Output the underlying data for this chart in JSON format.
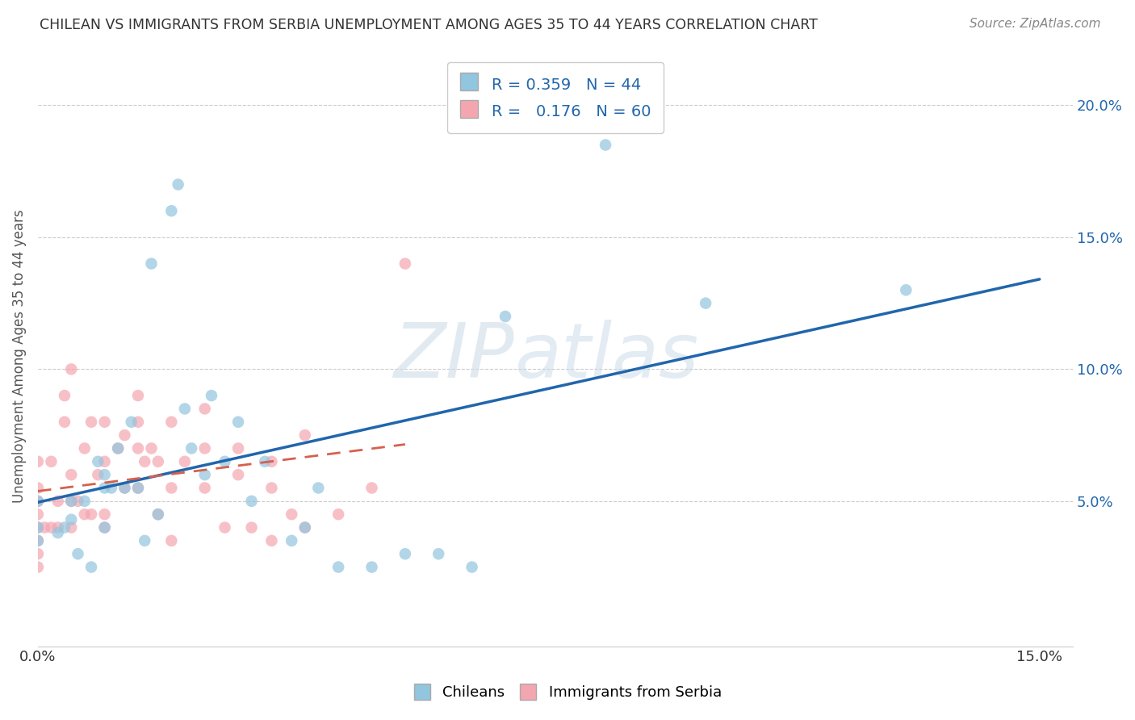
{
  "title": "CHILEAN VS IMMIGRANTS FROM SERBIA UNEMPLOYMENT AMONG AGES 35 TO 44 YEARS CORRELATION CHART",
  "source": "Source: ZipAtlas.com",
  "ylabel": "Unemployment Among Ages 35 to 44 years",
  "xlim": [
    0.0,
    0.155
  ],
  "ylim": [
    -0.005,
    0.215
  ],
  "chilean_color": "#92c5de",
  "chilean_color_line": "#2166ac",
  "serbia_color": "#f4a6b0",
  "serbia_color_line": "#d6604d",
  "R_chilean": 0.359,
  "N_chilean": 44,
  "R_serbia": 0.176,
  "N_serbia": 60,
  "chilean_x": [
    0.0,
    0.0,
    0.0,
    0.003,
    0.004,
    0.005,
    0.005,
    0.006,
    0.007,
    0.008,
    0.009,
    0.01,
    0.01,
    0.01,
    0.011,
    0.012,
    0.013,
    0.014,
    0.015,
    0.016,
    0.017,
    0.018,
    0.02,
    0.021,
    0.022,
    0.023,
    0.025,
    0.026,
    0.028,
    0.03,
    0.032,
    0.034,
    0.038,
    0.04,
    0.042,
    0.045,
    0.05,
    0.055,
    0.06,
    0.065,
    0.07,
    0.085,
    0.1,
    0.13
  ],
  "chilean_y": [
    0.035,
    0.04,
    0.05,
    0.038,
    0.04,
    0.043,
    0.05,
    0.03,
    0.05,
    0.025,
    0.065,
    0.06,
    0.04,
    0.055,
    0.055,
    0.07,
    0.055,
    0.08,
    0.055,
    0.035,
    0.14,
    0.045,
    0.16,
    0.17,
    0.085,
    0.07,
    0.06,
    0.09,
    0.065,
    0.08,
    0.05,
    0.065,
    0.035,
    0.04,
    0.055,
    0.025,
    0.025,
    0.03,
    0.03,
    0.025,
    0.12,
    0.185,
    0.125,
    0.13
  ],
  "serbia_x": [
    0.0,
    0.0,
    0.0,
    0.0,
    0.0,
    0.0,
    0.0,
    0.0,
    0.001,
    0.002,
    0.002,
    0.003,
    0.003,
    0.004,
    0.004,
    0.005,
    0.005,
    0.005,
    0.005,
    0.006,
    0.007,
    0.007,
    0.008,
    0.008,
    0.009,
    0.01,
    0.01,
    0.01,
    0.01,
    0.012,
    0.013,
    0.013,
    0.015,
    0.015,
    0.015,
    0.015,
    0.016,
    0.017,
    0.018,
    0.018,
    0.02,
    0.02,
    0.02,
    0.022,
    0.025,
    0.025,
    0.025,
    0.028,
    0.03,
    0.03,
    0.032,
    0.035,
    0.035,
    0.035,
    0.038,
    0.04,
    0.04,
    0.045,
    0.05,
    0.055
  ],
  "serbia_y": [
    0.025,
    0.03,
    0.035,
    0.04,
    0.045,
    0.05,
    0.055,
    0.065,
    0.04,
    0.04,
    0.065,
    0.04,
    0.05,
    0.08,
    0.09,
    0.04,
    0.05,
    0.06,
    0.1,
    0.05,
    0.045,
    0.07,
    0.045,
    0.08,
    0.06,
    0.04,
    0.045,
    0.065,
    0.08,
    0.07,
    0.055,
    0.075,
    0.055,
    0.07,
    0.08,
    0.09,
    0.065,
    0.07,
    0.045,
    0.065,
    0.035,
    0.055,
    0.08,
    0.065,
    0.055,
    0.07,
    0.085,
    0.04,
    0.06,
    0.07,
    0.04,
    0.035,
    0.055,
    0.065,
    0.045,
    0.04,
    0.075,
    0.045,
    0.055,
    0.14
  ]
}
